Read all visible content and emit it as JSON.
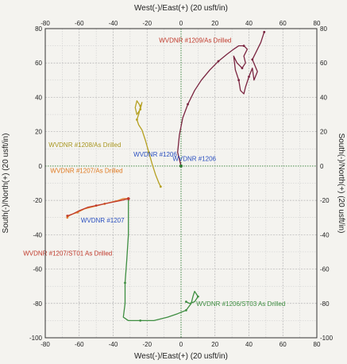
{
  "chart_data": {
    "type": "line",
    "xlabel": "West(-)/East(+) (20 usft/in)",
    "ylabel": "South(-)/North(+) (20 usft/in)",
    "xlim": [
      -80,
      80
    ],
    "ylim": [
      -100,
      80
    ],
    "x_major_ticks": [
      -80,
      -60,
      -40,
      -20,
      0,
      20,
      40,
      60,
      80
    ],
    "y_major_ticks": [
      -100,
      -80,
      -60,
      -40,
      -20,
      0,
      20,
      40,
      60,
      80
    ],
    "grid": true,
    "series": [
      {
        "name": "WVDNR #1209 As Drilled",
        "color": "#7a2440",
        "points": [
          [
            0,
            0
          ],
          [
            -2,
            8
          ],
          [
            -1,
            18
          ],
          [
            1,
            28
          ],
          [
            4,
            36
          ],
          [
            8,
            44
          ],
          [
            12,
            50
          ],
          [
            17,
            56
          ],
          [
            22,
            61
          ],
          [
            27,
            65
          ],
          [
            31,
            68
          ],
          [
            34,
            70
          ],
          [
            37,
            70
          ],
          [
            39,
            68
          ],
          [
            37,
            64
          ],
          [
            38,
            60
          ],
          [
            36,
            57
          ],
          [
            33,
            60
          ],
          [
            31,
            64
          ],
          [
            32,
            56
          ],
          [
            34,
            50
          ],
          [
            35,
            44
          ],
          [
            37,
            42
          ],
          [
            38,
            46
          ],
          [
            40,
            52
          ],
          [
            42,
            57
          ],
          [
            43,
            50
          ],
          [
            45,
            55
          ],
          [
            42,
            62
          ],
          [
            44,
            66
          ],
          [
            47,
            72
          ],
          [
            49,
            78
          ]
        ]
      },
      {
        "name": "WVDNR #1208 As Drilled",
        "color": "#b5a020",
        "points": [
          [
            -12,
            -12
          ],
          [
            -13,
            -10
          ],
          [
            -15,
            -5
          ],
          [
            -17,
            1
          ],
          [
            -19,
            8
          ],
          [
            -21,
            15
          ],
          [
            -23,
            21
          ],
          [
            -25,
            24
          ],
          [
            -26,
            27
          ],
          [
            -25,
            30
          ],
          [
            -24,
            34
          ],
          [
            -23,
            37
          ],
          [
            -24,
            33
          ],
          [
            -26,
            30
          ],
          [
            -27,
            34
          ],
          [
            -26,
            38
          ],
          [
            -24,
            35
          ]
        ]
      },
      {
        "name": "WVDNR #1207 As Drilled",
        "color": "#e08030",
        "points": [
          [
            -31,
            -19
          ],
          [
            -34,
            -19
          ],
          [
            -37,
            -20
          ],
          [
            -41,
            -21
          ],
          [
            -45,
            -22
          ],
          [
            -49,
            -23
          ],
          [
            -53,
            -24
          ],
          [
            -57,
            -25
          ],
          [
            -61,
            -27
          ],
          [
            -64,
            -28
          ],
          [
            -66,
            -29
          ],
          [
            -67,
            -30
          ]
        ]
      },
      {
        "name": "WVDNR #1207/ST01 As Drilled",
        "color": "#c0392b",
        "points": [
          [
            -31,
            -19
          ],
          [
            -35,
            -20
          ],
          [
            -40,
            -21
          ],
          [
            -45,
            -22
          ],
          [
            -50,
            -23
          ],
          [
            -55,
            -24
          ],
          [
            -60,
            -26
          ],
          [
            -64,
            -28
          ],
          [
            -67,
            -29
          ]
        ]
      },
      {
        "name": "WVDNR #1206/ST03 As Drilled",
        "color": "#3e8e41",
        "points": [
          [
            -31,
            -19
          ],
          [
            -31,
            -26
          ],
          [
            -31,
            -40
          ],
          [
            -32,
            -55
          ],
          [
            -33,
            -68
          ],
          [
            -33,
            -80
          ],
          [
            -34,
            -88
          ],
          [
            -31,
            -90
          ],
          [
            -24,
            -90
          ],
          [
            -16,
            -90
          ],
          [
            -8,
            -88
          ],
          [
            -2,
            -86
          ],
          [
            3,
            -84
          ],
          [
            6,
            -80
          ],
          [
            7,
            -76
          ],
          [
            8,
            -73
          ],
          [
            10,
            -76
          ],
          [
            8,
            -79
          ],
          [
            5,
            -80
          ],
          [
            3,
            -79
          ]
        ]
      }
    ],
    "annotations": [
      {
        "text": "WVDNR #1209/As Drilled",
        "x": -13,
        "y": 72,
        "color": "#c0392b"
      },
      {
        "text": "WVDNR #1208/As Drilled",
        "x": -78,
        "y": 11,
        "color": "#a89620"
      },
      {
        "text": "WVDNR #1206",
        "x": -28,
        "y": 5.5,
        "color": "#2a4fbf"
      },
      {
        "text": "WVDNR #1206",
        "x": -5,
        "y": 3,
        "color": "#2a4fbf"
      },
      {
        "text": "WVDNR #1207/As Drilled",
        "x": -77,
        "y": -4,
        "color": "#e07a20"
      },
      {
        "text": "WVDNR #1207",
        "x": -59,
        "y": -33,
        "color": "#2a4fbf"
      },
      {
        "text": "WVDNR #1207/ST01 As Drilled",
        "x": -93,
        "y": -52,
        "color": "#c0392b"
      },
      {
        "text": "WVDNR #1206/ST03 As Drilled",
        "x": 9,
        "y": -81.5,
        "color": "#3e8e41"
      }
    ]
  }
}
